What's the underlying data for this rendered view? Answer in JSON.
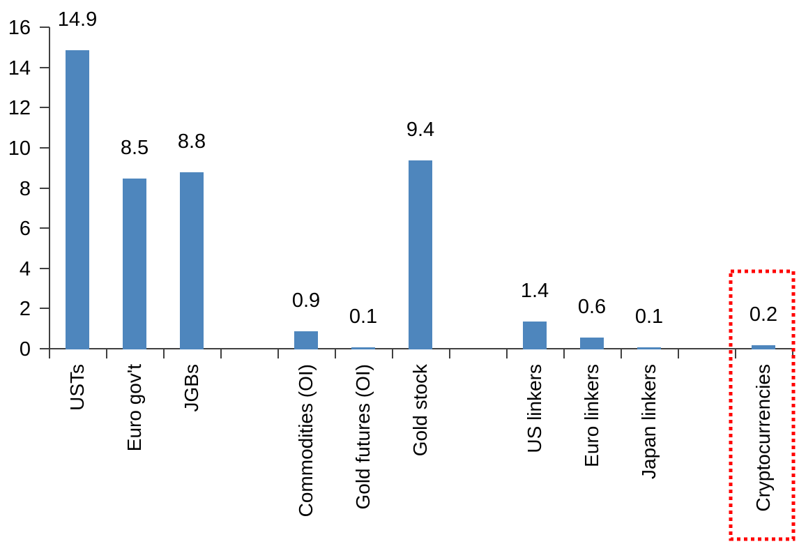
{
  "chart_data": {
    "type": "bar",
    "title": "",
    "xlabel": "",
    "ylabel": "",
    "categories": [
      "USTs",
      "Euro gov't",
      "JGBs",
      "",
      "Commodities (OI)",
      "Gold futures (OI)",
      "Gold stock",
      "",
      "US linkers",
      "Euro linkers",
      "Japan linkers",
      "",
      "Cryptocurrencies"
    ],
    "values": [
      14.9,
      8.5,
      8.8,
      null,
      0.9,
      0.1,
      9.4,
      null,
      1.4,
      0.6,
      0.1,
      null,
      0.2
    ],
    "labels": [
      "14.9",
      "8.5",
      "8.8",
      "",
      "0.9",
      "0.1",
      "9.4",
      "",
      "1.4",
      "0.6",
      "0.1",
      "",
      "0.2"
    ],
    "ylim": [
      0,
      16
    ],
    "yticks": [
      0,
      2,
      4,
      6,
      8,
      10,
      12,
      14,
      16
    ],
    "grid": false,
    "legend": "none",
    "background": "#FFFFFF",
    "bar_color": "#4E86BD",
    "axis_color": "#404040",
    "text_color": "#000000",
    "highlight": {
      "category": "Cryptocurrencies",
      "box_color": "#FF0000",
      "box_style": "dotted"
    }
  }
}
